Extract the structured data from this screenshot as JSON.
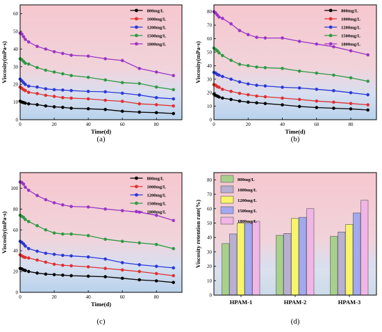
{
  "chart_data": [
    {
      "panel_label": "(a)",
      "type": "line",
      "xlabel": "Time(d)",
      "ylabel": "Viscosity(mPa·s)",
      "xlim": [
        0,
        95
      ],
      "ylim": [
        0,
        65
      ],
      "xticks": [
        "0",
        "20",
        "40",
        "60",
        "80"
      ],
      "yticks": [
        "0",
        "10",
        "20",
        "30",
        "40",
        "50",
        "60"
      ],
      "legend_position": "top-right",
      "series": [
        {
          "name": "800mg/L",
          "color": "#000000",
          "x": [
            0,
            1,
            2,
            3,
            5,
            10,
            15,
            20,
            25,
            30,
            40,
            50,
            60,
            70,
            80,
            90
          ],
          "y": [
            10.5,
            10,
            9.7,
            9.4,
            9.0,
            8.5,
            7.8,
            7.3,
            7.0,
            6.5,
            6.2,
            5.8,
            4.8,
            4.3,
            4.0,
            3.5
          ]
        },
        {
          "name": "1000mg/L",
          "color": "#e03030",
          "x": [
            0,
            1,
            2,
            3,
            5,
            10,
            15,
            20,
            25,
            30,
            40,
            50,
            60,
            70,
            80,
            90
          ],
          "y": [
            18.5,
            17.8,
            17,
            16.5,
            15.5,
            14.8,
            13.8,
            13.2,
            12.5,
            12.2,
            11.8,
            11.0,
            10.4,
            9.0,
            8.5,
            7.8
          ]
        },
        {
          "name": "1200mg/L",
          "color": "#2a38d8",
          "x": [
            0,
            1,
            2,
            3,
            5,
            10,
            15,
            20,
            25,
            30,
            40,
            50,
            60,
            70,
            80,
            90
          ],
          "y": [
            23.0,
            22.0,
            21.0,
            20.0,
            19.0,
            18.5,
            17.5,
            17.0,
            16.8,
            16.5,
            16.0,
            15.8,
            15.0,
            14.0,
            12.5,
            11.8
          ]
        },
        {
          "name": "1500mg/L",
          "color": "#2e9a44",
          "x": [
            0,
            1,
            2,
            3,
            5,
            10,
            15,
            20,
            25,
            30,
            40,
            50,
            60,
            70,
            80,
            90
          ],
          "y": [
            34.5,
            34.0,
            33.0,
            32.0,
            31.5,
            29.5,
            28.0,
            27.0,
            26.0,
            25.0,
            24.0,
            22.5,
            21.0,
            20.5,
            18.5,
            17.0
          ]
        },
        {
          "name": "1800mg/L",
          "color": "#9a35c6",
          "x": [
            0,
            1,
            2,
            3,
            5,
            10,
            15,
            20,
            25,
            30,
            40,
            50,
            60,
            70,
            80,
            90
          ],
          "y": [
            49.0,
            48.5,
            47.0,
            45.5,
            44.0,
            41.5,
            40.0,
            38.5,
            37.5,
            36.5,
            36.0,
            34.5,
            33.5,
            29.0,
            27.0,
            25.0
          ]
        }
      ]
    },
    {
      "panel_label": "(b)",
      "type": "line",
      "xlabel": "Time(d)",
      "ylabel": "Viscosity(mPa·s)",
      "xlim": [
        0,
        95
      ],
      "ylim": [
        0,
        85
      ],
      "xticks": [
        "0",
        "20",
        "40",
        "60",
        "80"
      ],
      "yticks": [
        "0",
        "10",
        "20",
        "30",
        "40",
        "50",
        "60",
        "70",
        "80"
      ],
      "legend_position": "top-right",
      "series": [
        {
          "name": "800mg/L",
          "color": "#000000",
          "x": [
            0,
            1,
            2,
            3,
            5,
            10,
            15,
            20,
            25,
            30,
            40,
            50,
            60,
            70,
            80,
            90
          ],
          "y": [
            19.0,
            18.0,
            17.5,
            16.8,
            16.0,
            15.0,
            13.8,
            13.0,
            12.5,
            12.0,
            11.0,
            9.8,
            9.0,
            8.5,
            8.0,
            7.2
          ]
        },
        {
          "name": "1000mg/L",
          "color": "#e03030",
          "x": [
            0,
            1,
            2,
            3,
            5,
            10,
            15,
            20,
            25,
            30,
            40,
            50,
            60,
            70,
            80,
            90
          ],
          "y": [
            26.0,
            25.5,
            24.5,
            24.0,
            22.5,
            21.0,
            19.5,
            18.5,
            17.5,
            17.0,
            16.0,
            15.0,
            13.8,
            13.0,
            12.0,
            11.0
          ]
        },
        {
          "name": "1200mg/L",
          "color": "#2a38d8",
          "x": [
            0,
            1,
            2,
            3,
            5,
            10,
            15,
            20,
            25,
            30,
            40,
            50,
            60,
            70,
            80,
            90
          ],
          "y": [
            35.0,
            34.5,
            33.5,
            33.0,
            32.0,
            30.0,
            28.0,
            26.5,
            25.5,
            25.0,
            24.0,
            23.5,
            22.5,
            21.5,
            20.0,
            18.5
          ]
        },
        {
          "name": "1500mg/L",
          "color": "#2e9a44",
          "x": [
            0,
            1,
            2,
            3,
            5,
            10,
            15,
            20,
            25,
            30,
            40,
            50,
            60,
            70,
            80,
            90
          ],
          "y": [
            53.0,
            52.0,
            51.0,
            49.5,
            47.5,
            44.0,
            41.0,
            40.0,
            39.0,
            38.5,
            38.0,
            36.0,
            34.5,
            33.0,
            31.0,
            28.5
          ]
        },
        {
          "name": "1800mg/L",
          "color": "#9a35c6",
          "x": [
            0,
            1,
            2,
            3,
            5,
            10,
            15,
            20,
            25,
            30,
            40,
            50,
            60,
            70,
            80,
            90
          ],
          "y": [
            80.0,
            79.0,
            77.5,
            76.0,
            75.0,
            71.0,
            66.0,
            63.0,
            61.0,
            60.5,
            60.5,
            58.0,
            56.0,
            54.0,
            51.0,
            48.0
          ]
        }
      ]
    },
    {
      "panel_label": "(c)",
      "type": "line",
      "xlabel": "Time(d)",
      "ylabel": "Viscosity(mPa·s)",
      "xlim": [
        0,
        95
      ],
      "ylim": [
        0,
        115
      ],
      "xticks": [
        "0",
        "20",
        "40",
        "60",
        "80"
      ],
      "yticks": [
        "0",
        "20",
        "40",
        "60",
        "80",
        "100"
      ],
      "legend_position": "top-right",
      "series": [
        {
          "name": "800mg/L",
          "color": "#000000",
          "x": [
            0,
            1,
            2,
            3,
            5,
            10,
            15,
            20,
            25,
            30,
            40,
            50,
            60,
            70,
            80,
            90
          ],
          "y": [
            23.0,
            22.5,
            21.5,
            21.0,
            20.0,
            18.5,
            17.5,
            17.0,
            16.5,
            16.0,
            15.5,
            15.0,
            13.5,
            12.0,
            11.0,
            9.5
          ]
        },
        {
          "name": "1000mg/L",
          "color": "#e03030",
          "x": [
            0,
            1,
            2,
            3,
            5,
            10,
            15,
            20,
            25,
            30,
            40,
            50,
            60,
            70,
            80,
            90
          ],
          "y": [
            36.0,
            35.0,
            34.0,
            33.5,
            33.0,
            31.0,
            29.0,
            27.0,
            26.0,
            25.5,
            24.5,
            23.0,
            21.5,
            20.0,
            18.0,
            16.0
          ]
        },
        {
          "name": "1200mg/L",
          "color": "#2a38d8",
          "x": [
            0,
            1,
            2,
            3,
            5,
            10,
            15,
            20,
            25,
            30,
            40,
            50,
            60,
            70,
            80,
            90
          ],
          "y": [
            49.0,
            48.0,
            46.5,
            44.5,
            42.0,
            39.5,
            37.5,
            36.5,
            35.5,
            35.0,
            34.0,
            32.0,
            28.5,
            26.5,
            25.0,
            23.5
          ]
        },
        {
          "name": "1500mg/L",
          "color": "#2e9a44",
          "x": [
            0,
            1,
            2,
            3,
            5,
            10,
            15,
            20,
            25,
            30,
            40,
            50,
            60,
            70,
            80,
            90
          ],
          "y": [
            74.0,
            73.0,
            72.0,
            70.0,
            68.0,
            64.0,
            60.0,
            57.0,
            56.0,
            56.0,
            54.5,
            51.0,
            49.0,
            47.5,
            46.0,
            42.0
          ]
        },
        {
          "name": "1800mg/L",
          "color": "#9a35c6",
          "x": [
            0,
            1,
            2,
            3,
            5,
            10,
            15,
            20,
            25,
            30,
            40,
            50,
            60,
            70,
            80,
            90
          ],
          "y": [
            106.0,
            105.5,
            104.0,
            101.0,
            98.0,
            93.0,
            89.0,
            86.0,
            84.0,
            82.5,
            82.0,
            80.0,
            78.5,
            77.0,
            74.0,
            69.0
          ]
        }
      ]
    },
    {
      "panel_label": "(d)",
      "type": "bar",
      "xlabel": "",
      "ylabel": "Viscosity retention rate(%)",
      "ylim": [
        0,
        85
      ],
      "yticks": [
        "0",
        "10",
        "20",
        "30",
        "40",
        "50",
        "60",
        "70",
        "80"
      ],
      "categories": [
        "HPAM-1",
        "HPAM-2",
        "HPAM-3"
      ],
      "legend_position": "top-left",
      "series": [
        {
          "name": "800mg/L",
          "color": "#a8d08d",
          "values": [
            35.8,
            41.5,
            40.8
          ]
        },
        {
          "name": "1000mg/L",
          "color": "#b8afd2",
          "values": [
            42.5,
            42.8,
            43.8
          ]
        },
        {
          "name": "1200mg/L",
          "color": "#f7f56a",
          "values": [
            50.0,
            53.2,
            49.0
          ]
        },
        {
          "name": "1500mg/L",
          "color": "#a2a9ef",
          "values": [
            49.8,
            54.0,
            57.0
          ]
        },
        {
          "name": "1800mg/L",
          "color": "#f0b6e6",
          "values": [
            51.2,
            60.0,
            65.8
          ]
        }
      ]
    }
  ]
}
